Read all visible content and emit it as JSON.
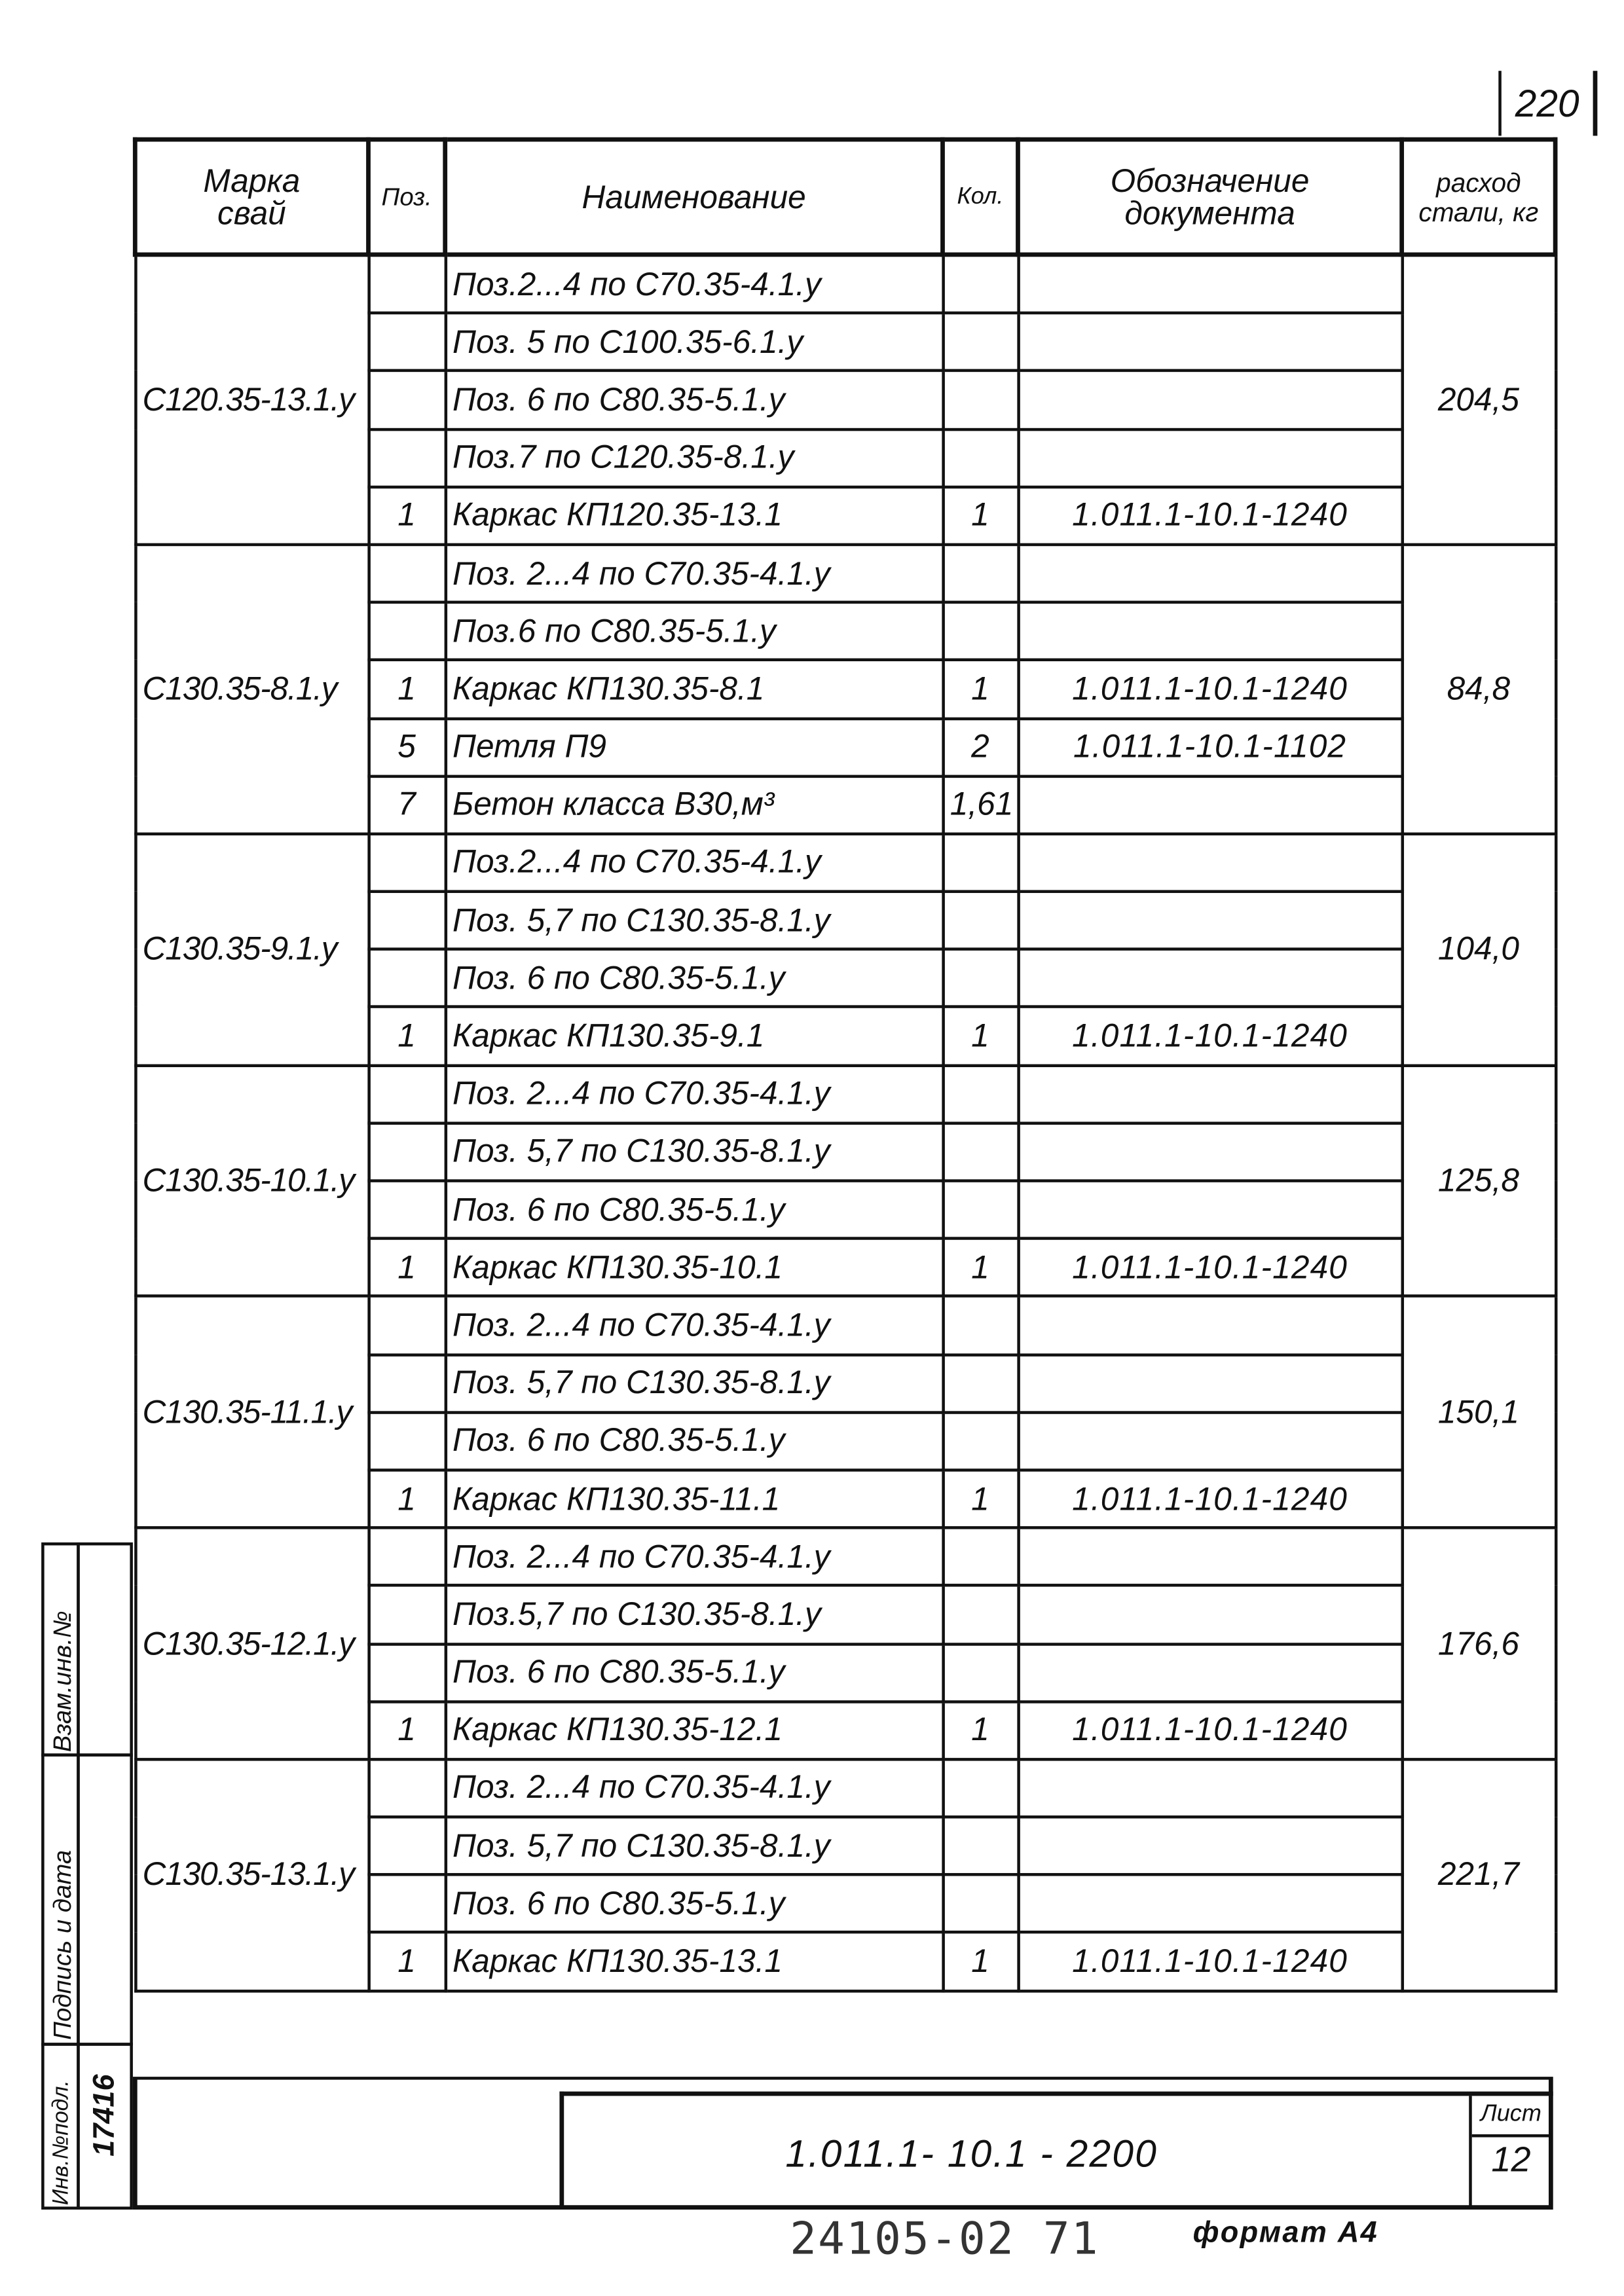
{
  "sheet_number_top": "220",
  "header": {
    "mark": "Марка свай",
    "pos": "Поз.",
    "name": "Наименование",
    "qty": "Кол.",
    "doc": "Обозначение документа",
    "steel": "расход стали, кг"
  },
  "groups": [
    {
      "mark": "С120.35-13.1.у",
      "steel": "204,5",
      "rows": [
        {
          "pos": "",
          "name": "Поз.2...4 по С70.35-4.1.у",
          "qty": "",
          "doc": ""
        },
        {
          "pos": "",
          "name": "Поз. 5 по С100.35-6.1.у",
          "qty": "",
          "doc": ""
        },
        {
          "pos": "",
          "name": "Поз. 6 по С80.35-5.1.у",
          "qty": "",
          "doc": ""
        },
        {
          "pos": "",
          "name": "Поз.7 по С120.35-8.1.у",
          "qty": "",
          "doc": ""
        },
        {
          "pos": "1",
          "name": "Каркас КП120.35-13.1",
          "qty": "1",
          "doc": "1.011.1-10.1-1240"
        }
      ]
    },
    {
      "mark": "С130.35-8.1.у",
      "steel": "84,8",
      "rows": [
        {
          "pos": "",
          "name": "Поз. 2...4 по С70.35-4.1.у",
          "qty": "",
          "doc": ""
        },
        {
          "pos": "",
          "name": "Поз.6 по С80.35-5.1.у",
          "qty": "",
          "doc": ""
        },
        {
          "pos": "1",
          "name": "Каркас КП130.35-8.1",
          "qty": "1",
          "doc": "1.011.1-10.1-1240"
        },
        {
          "pos": "5",
          "name": "Петля П9",
          "qty": "2",
          "doc": "1.011.1-10.1-1102"
        },
        {
          "pos": "7",
          "name": "Бетон класса В30,м³",
          "qty": "1,61",
          "doc": ""
        }
      ]
    },
    {
      "mark": "С130.35-9.1.у",
      "steel": "104,0",
      "rows": [
        {
          "pos": "",
          "name": "Поз.2...4 по С70.35-4.1.у",
          "qty": "",
          "doc": ""
        },
        {
          "pos": "",
          "name": "Поз. 5,7 по С130.35-8.1.у",
          "qty": "",
          "doc": ""
        },
        {
          "pos": "",
          "name": "Поз. 6 по С80.35-5.1.у",
          "qty": "",
          "doc": ""
        },
        {
          "pos": "1",
          "name": "Каркас КП130.35-9.1",
          "qty": "1",
          "doc": "1.011.1-10.1-1240"
        }
      ]
    },
    {
      "mark": "С130.35-10.1.у",
      "steel": "125,8",
      "rows": [
        {
          "pos": "",
          "name": "Поз. 2...4 по С70.35-4.1.у",
          "qty": "",
          "doc": ""
        },
        {
          "pos": "",
          "name": "Поз. 5,7 по С130.35-8.1.у",
          "qty": "",
          "doc": ""
        },
        {
          "pos": "",
          "name": "Поз. 6 по С80.35-5.1.у",
          "qty": "",
          "doc": ""
        },
        {
          "pos": "1",
          "name": "Каркас КП130.35-10.1",
          "qty": "1",
          "doc": "1.011.1-10.1-1240"
        }
      ]
    },
    {
      "mark": "С130.35-11.1.у",
      "steel": "150,1",
      "rows": [
        {
          "pos": "",
          "name": "Поз. 2...4 по С70.35-4.1.у",
          "qty": "",
          "doc": ""
        },
        {
          "pos": "",
          "name": "Поз. 5,7 по С130.35-8.1.у",
          "qty": "",
          "doc": ""
        },
        {
          "pos": "",
          "name": "Поз. 6 по С80.35-5.1.у",
          "qty": "",
          "doc": ""
        },
        {
          "pos": "1",
          "name": "Каркас КП130.35-11.1",
          "qty": "1",
          "doc": "1.011.1-10.1-1240"
        }
      ]
    },
    {
      "mark": "С130.35-12.1.у",
      "steel": "176,6",
      "rows": [
        {
          "pos": "",
          "name": "Поз. 2...4 по С70.35-4.1.у",
          "qty": "",
          "doc": ""
        },
        {
          "pos": "",
          "name": "Поз.5,7 по С130.35-8.1.у",
          "qty": "",
          "doc": ""
        },
        {
          "pos": "",
          "name": "Поз. 6 по С80.35-5.1.у",
          "qty": "",
          "doc": ""
        },
        {
          "pos": "1",
          "name": "Каркас КП130.35-12.1",
          "qty": "1",
          "doc": "1.011.1-10.1-1240"
        }
      ]
    },
    {
      "mark": "С130.35-13.1.у",
      "steel": "221,7",
      "rows": [
        {
          "pos": "",
          "name": "Поз. 2...4 по С70.35-4.1.у",
          "qty": "",
          "doc": ""
        },
        {
          "pos": "",
          "name": "Поз. 5,7 по С130.35-8.1.у",
          "qty": "",
          "doc": ""
        },
        {
          "pos": "",
          "name": "Поз. 6 по С80.35-5.1.у",
          "qty": "",
          "doc": ""
        },
        {
          "pos": "1",
          "name": "Каркас КП130.35-13.1",
          "qty": "1",
          "doc": "1.011.1-10.1-1240"
        }
      ]
    }
  ],
  "stamp": {
    "doc_code": "1.011.1- 10.1 - 2200",
    "sheet_label": "Лист",
    "sheet_number": "12"
  },
  "side_stamp": {
    "replace_inv": "Взам.инв.№",
    "sign_date": "Подпись и дата",
    "orig_inv": "Инв.№подл.",
    "orig_inv_value": "17416"
  },
  "footer": {
    "code": "24105-02  71",
    "format": "формат А4"
  }
}
